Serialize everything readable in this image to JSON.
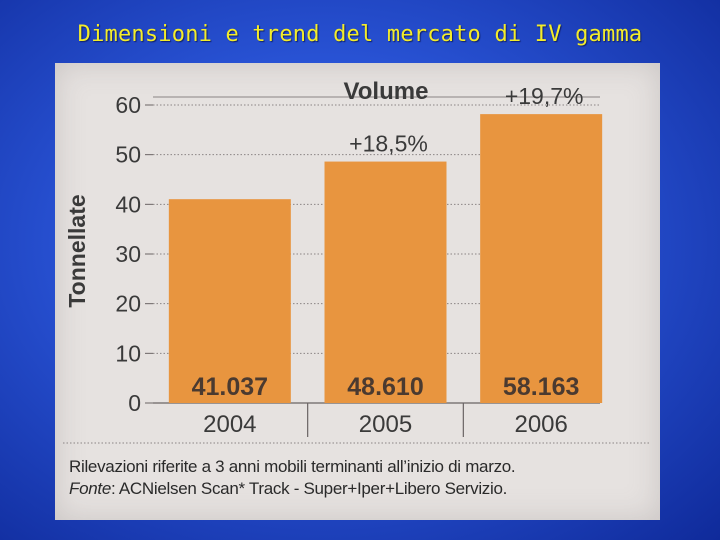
{
  "slide": {
    "title": "Dimensioni e trend del mercato di IV gamma"
  },
  "chart_data": {
    "type": "bar",
    "title": "Volume",
    "ylabel": "Tonnellate",
    "xlabel": "",
    "categories": [
      "2004",
      "2005",
      "2006"
    ],
    "values": [
      41.037,
      48.61,
      58.163
    ],
    "value_labels": [
      "41.037",
      "48.610",
      "58.163"
    ],
    "growth_labels": [
      "",
      "+18,5%",
      "+19,7%"
    ],
    "ylim": [
      0,
      60
    ],
    "yticks": [
      0,
      10,
      20,
      30,
      40,
      50,
      60
    ],
    "grid": true,
    "colors": {
      "bar": "#e8953f",
      "bar_label": "#4a3a30",
      "text": "#3a3a3a"
    }
  },
  "notes": {
    "line1": "Rilevazioni riferite a 3 anni mobili terminanti all’inizio di marzo.",
    "source_label": "Fonte",
    "line2": ": ACNielsen Scan* Track - Super+Iper+Libero Servizio."
  }
}
